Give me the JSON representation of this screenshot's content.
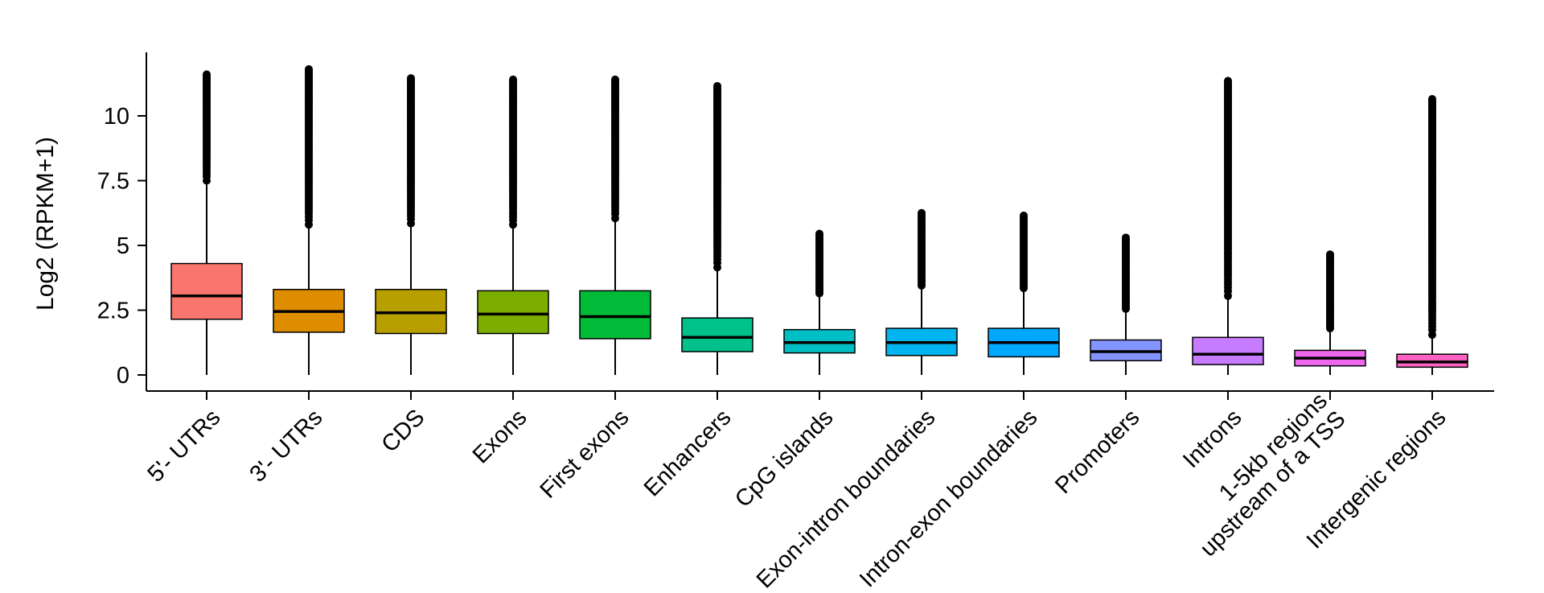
{
  "chart_data": {
    "type": "boxplot",
    "title": "",
    "xlabel": "",
    "ylabel": "Log2 (RPKM+1)",
    "ylim": [
      -0.6,
      12.5
    ],
    "yticks": [
      0,
      2.5,
      5,
      7.5,
      10
    ],
    "ytick_labels": [
      "0",
      "2.5",
      "5",
      "7.5",
      "10"
    ],
    "grid": false,
    "legend": "none",
    "categories": [
      {
        "label": "5'- UTRs",
        "color": "#F8766D",
        "min": 0,
        "q1": 2.15,
        "median": 3.05,
        "q3": 4.3,
        "whisker_high": 7.45,
        "outlier_low": 7.5,
        "outlier_high": 11.6
      },
      {
        "label": "3'- UTRs",
        "color": "#DE8C00",
        "min": 0,
        "q1": 1.65,
        "median": 2.45,
        "q3": 3.3,
        "whisker_high": 5.75,
        "outlier_low": 5.8,
        "outlier_high": 11.8
      },
      {
        "label": "CDS",
        "color": "#B79F00",
        "min": 0,
        "q1": 1.6,
        "median": 2.4,
        "q3": 3.3,
        "whisker_high": 5.8,
        "outlier_low": 5.85,
        "outlier_high": 11.45
      },
      {
        "label": "Exons",
        "color": "#7CAE00",
        "min": 0,
        "q1": 1.6,
        "median": 2.35,
        "q3": 3.25,
        "whisker_high": 5.75,
        "outlier_low": 5.8,
        "outlier_high": 11.4
      },
      {
        "label": "First exons",
        "color": "#00BA38",
        "min": 0,
        "q1": 1.4,
        "median": 2.25,
        "q3": 3.25,
        "whisker_high": 6.0,
        "outlier_low": 6.05,
        "outlier_high": 11.4
      },
      {
        "label": "Enhancers",
        "color": "#00C08B",
        "min": 0,
        "q1": 0.9,
        "median": 1.45,
        "q3": 2.2,
        "whisker_high": 4.1,
        "outlier_low": 4.15,
        "outlier_high": 11.15
      },
      {
        "label": "CpG islands",
        "color": "#00BFC4",
        "min": 0,
        "q1": 0.85,
        "median": 1.25,
        "q3": 1.75,
        "whisker_high": 3.1,
        "outlier_low": 3.15,
        "outlier_high": 5.45
      },
      {
        "label": "Exon-intron boundaries",
        "color": "#00B4F0",
        "min": 0,
        "q1": 0.75,
        "median": 1.25,
        "q3": 1.8,
        "whisker_high": 3.4,
        "outlier_low": 3.45,
        "outlier_high": 6.25
      },
      {
        "label": "Intron-exon boundaries",
        "color": "#00A9FF",
        "min": 0,
        "q1": 0.7,
        "median": 1.25,
        "q3": 1.8,
        "whisker_high": 3.3,
        "outlier_low": 3.35,
        "outlier_high": 6.15
      },
      {
        "label": "Promoters",
        "color": "#8494FF",
        "min": 0,
        "q1": 0.55,
        "median": 0.9,
        "q3": 1.35,
        "whisker_high": 2.5,
        "outlier_low": 2.55,
        "outlier_high": 5.3
      },
      {
        "label": "Introns",
        "color": "#C77CFF",
        "min": 0,
        "q1": 0.4,
        "median": 0.8,
        "q3": 1.45,
        "whisker_high": 3.0,
        "outlier_low": 3.05,
        "outlier_high": 11.35
      },
      {
        "label": "1-5kb regions\nupstream of a TSS",
        "color": "#ED68ED",
        "min": 0,
        "q1": 0.35,
        "median": 0.65,
        "q3": 0.95,
        "whisker_high": 1.75,
        "outlier_low": 1.8,
        "outlier_high": 4.65
      },
      {
        "label": "Intergenic regions",
        "color": "#FF61C3",
        "min": 0,
        "q1": 0.3,
        "median": 0.5,
        "q3": 0.8,
        "whisker_high": 1.5,
        "outlier_low": 1.55,
        "outlier_high": 10.65
      }
    ]
  }
}
